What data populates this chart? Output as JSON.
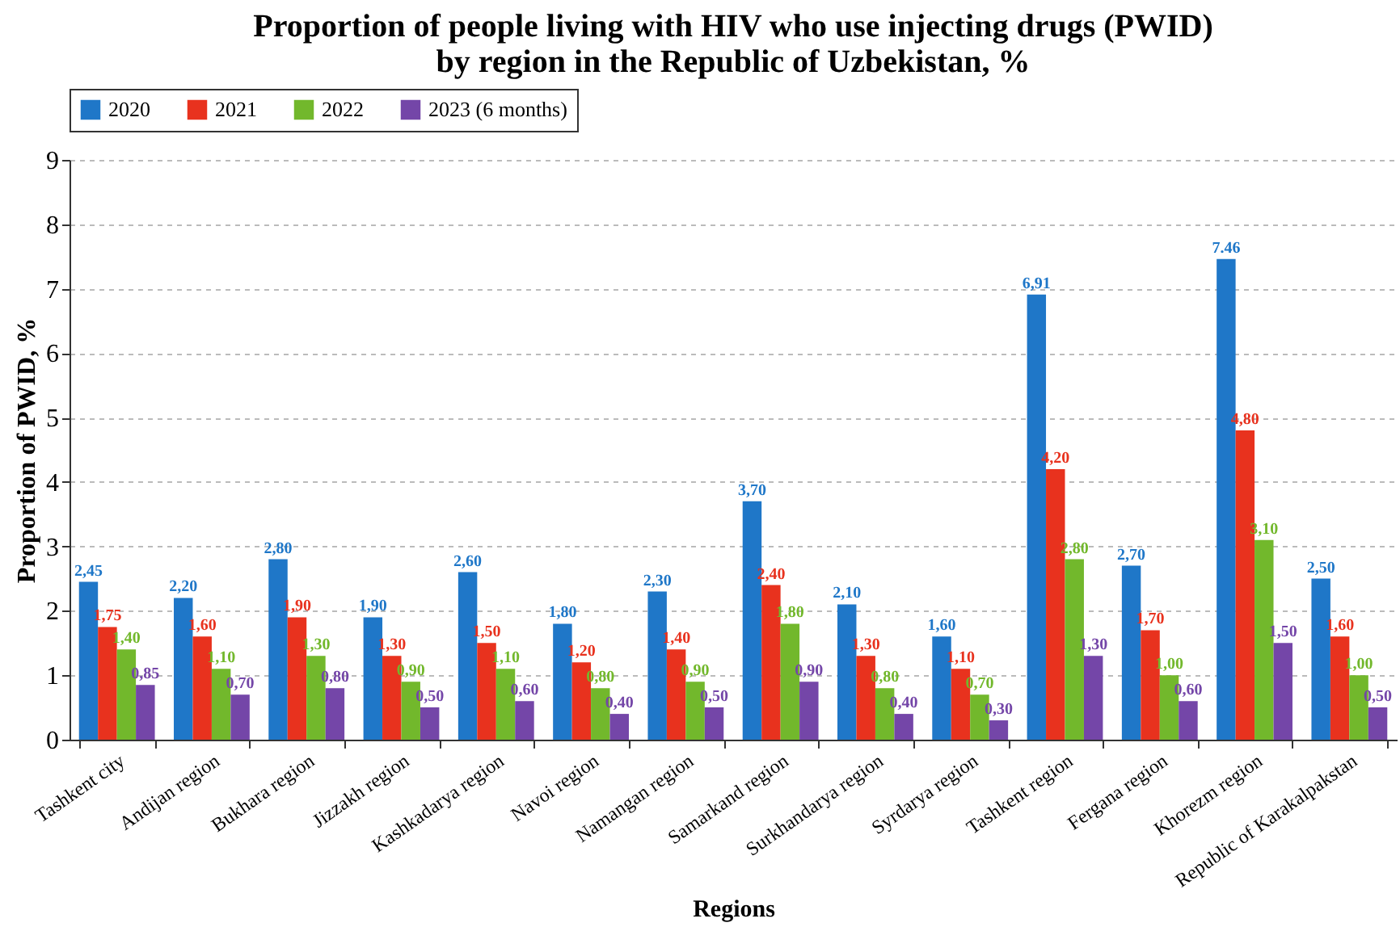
{
  "chart_data": {
    "type": "bar",
    "title": "Proportion of people living with HIV who use injecting drugs (PWID)\nby region in the Republic of Uzbekistan, %",
    "xlabel": "Regions",
    "ylabel": "Proportion of PWID, %",
    "categories": [
      "Tashkent city",
      "Andijan region",
      "Bukhara region",
      "Jizzakh region",
      "Kashkadarya region",
      "Navoi region",
      "Namangan region",
      "Samarkand region",
      "Surkhandarya region",
      "Syrdarya region",
      "Tashkent region",
      "Fergana region",
      "Khorezm region",
      "Republic of Karakalpakstan"
    ],
    "series": [
      {
        "name": "2020",
        "color": "#1f77c8",
        "values": [
          2.45,
          2.2,
          2.8,
          1.9,
          2.6,
          1.8,
          2.3,
          3.7,
          2.1,
          1.6,
          6.91,
          2.7,
          7.46,
          2.5
        ],
        "value_labels": [
          "2,45",
          "2,20",
          "2,80",
          "1,90",
          "2,60",
          "1,80",
          "2,30",
          "3,70",
          "2,10",
          "1,60",
          "6,91",
          "2,70",
          "7.46",
          "2,50"
        ]
      },
      {
        "name": "2021",
        "color": "#e8321e",
        "values": [
          1.75,
          1.6,
          1.9,
          1.3,
          1.5,
          1.2,
          1.4,
          2.4,
          1.3,
          1.1,
          4.2,
          1.7,
          4.8,
          1.6
        ],
        "value_labels": [
          "1,75",
          "1,60",
          "1,90",
          "1,30",
          "1,50",
          "1,20",
          "1,40",
          "2,40",
          "1,30",
          "1,10",
          "4,20",
          "1,70",
          "4,80",
          "1,60"
        ]
      },
      {
        "name": "2022",
        "color": "#72b82c",
        "values": [
          1.4,
          1.1,
          1.3,
          0.9,
          1.1,
          0.8,
          0.9,
          1.8,
          0.8,
          0.7,
          2.8,
          1.0,
          3.1,
          1.0
        ],
        "value_labels": [
          "1,40",
          "1,10",
          "1,30",
          "0,90",
          "1,10",
          "0,80",
          "0,90",
          "1,80",
          "0,80",
          "0,70",
          "2,80",
          "1,00",
          "3,10",
          "1,00"
        ]
      },
      {
        "name": "2023 (6 months)",
        "color": "#7446a8",
        "values": [
          0.85,
          0.7,
          0.8,
          0.5,
          0.6,
          0.4,
          0.5,
          0.9,
          0.4,
          0.3,
          1.3,
          0.6,
          1.5,
          0.5
        ],
        "value_labels": [
          "0,85",
          "0,70",
          "0,80",
          "0,50",
          "0,60",
          "0,40",
          "0,50",
          "0,90",
          "0,40",
          "0,30",
          "1,30",
          "0,60",
          "1,50",
          "0,50"
        ]
      }
    ],
    "ylim": [
      0,
      9
    ],
    "yticks": [
      0,
      1,
      2,
      3,
      4,
      5,
      6,
      7,
      8,
      9
    ],
    "grid": "y",
    "legend": "top"
  }
}
